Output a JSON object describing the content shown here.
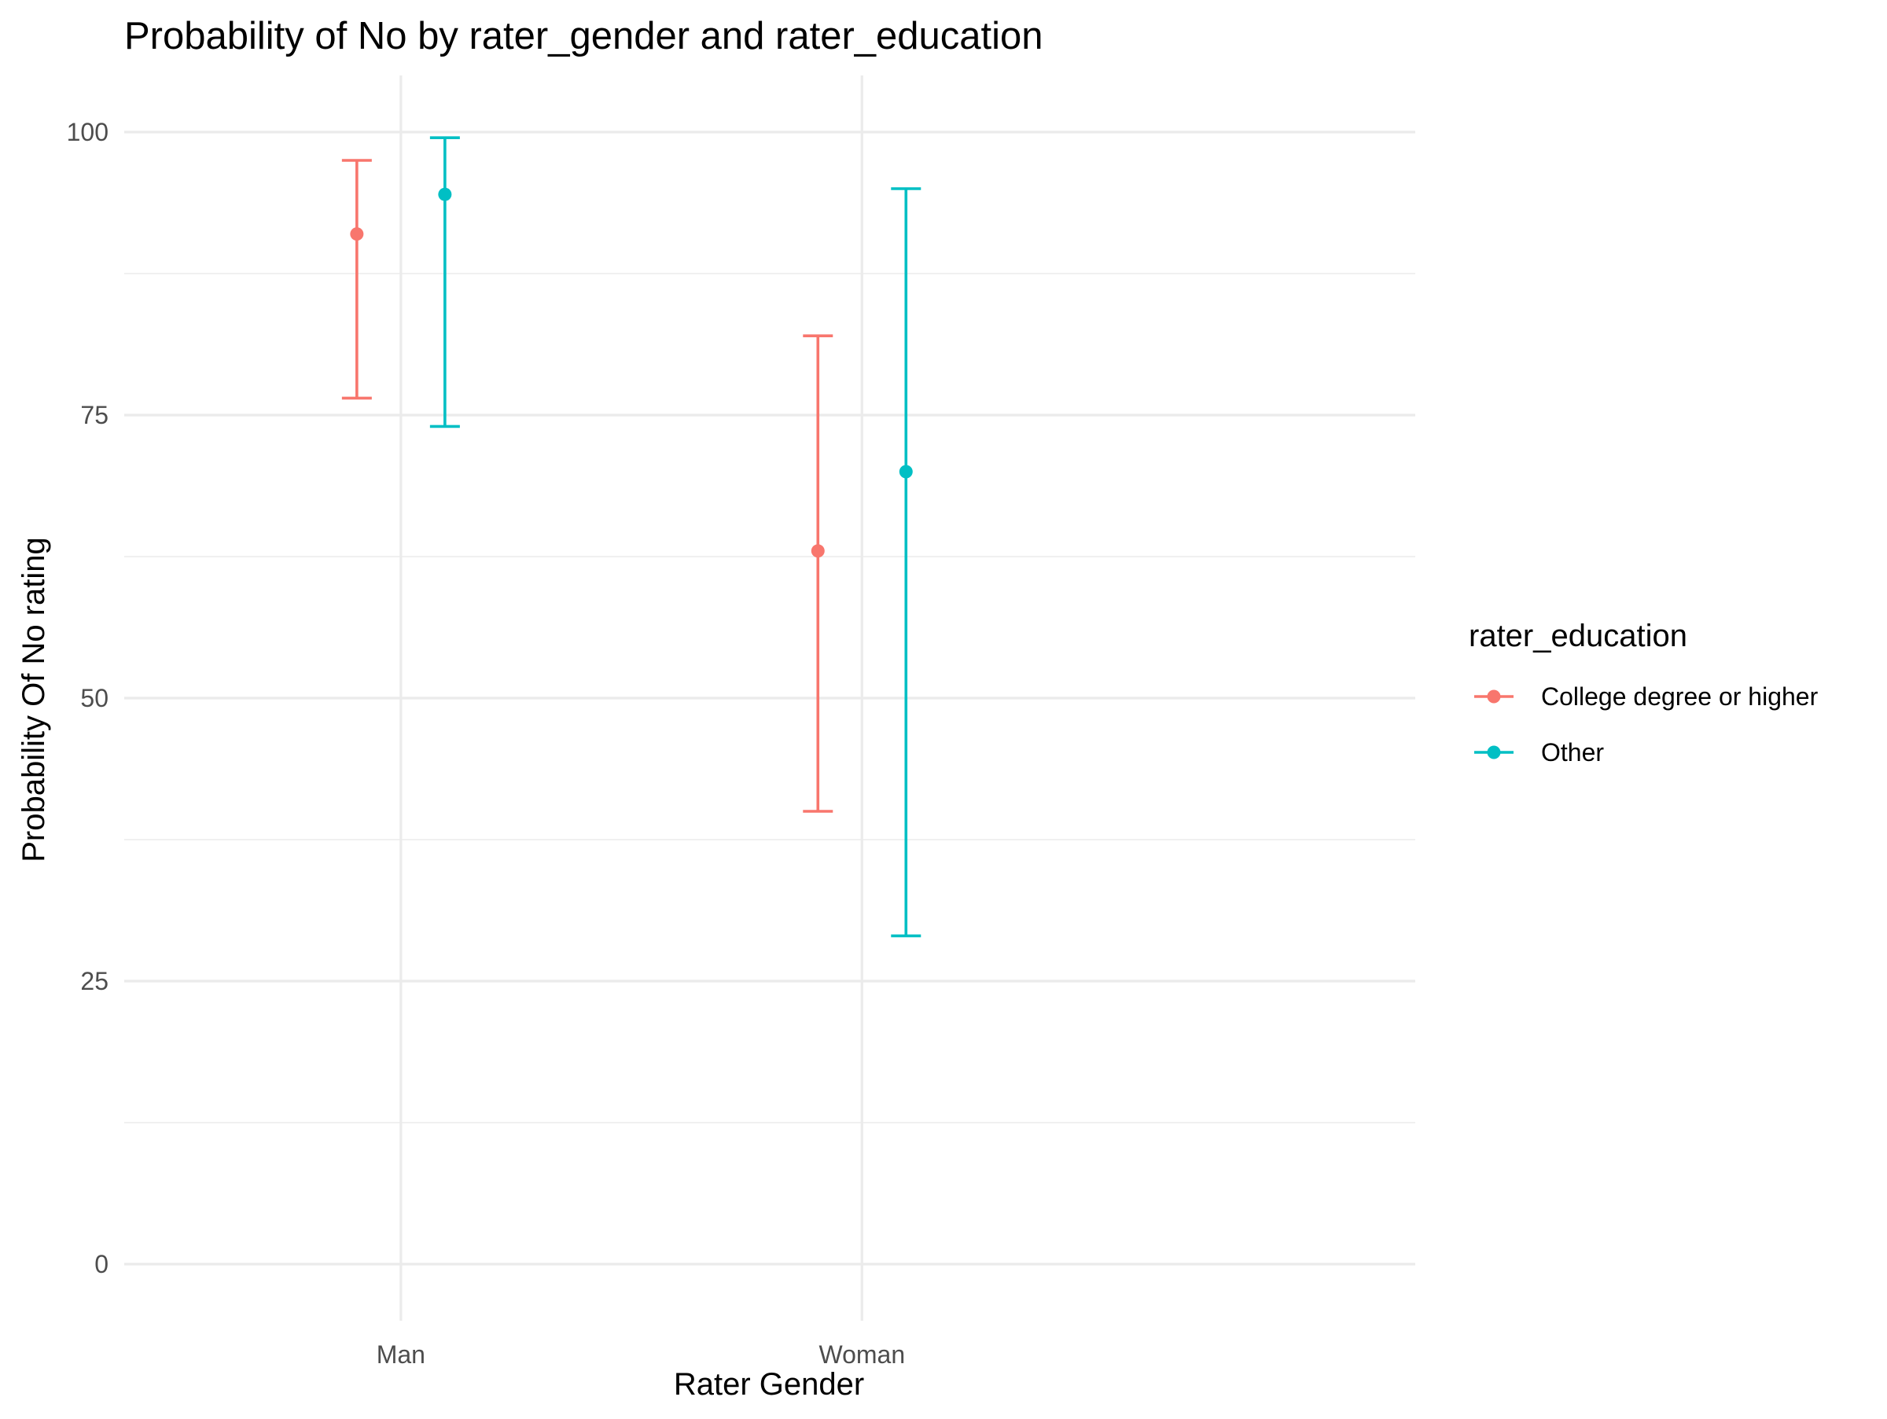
{
  "chart_data": {
    "type": "errorbar",
    "title": "Probability of No by rater_gender and  rater_education",
    "xlabel": "Rater Gender",
    "ylabel": "Probability Of No rating",
    "categories": [
      "Man",
      "Woman"
    ],
    "ylim": [
      -5,
      105
    ],
    "y_ticks": [
      0,
      25,
      50,
      75,
      100
    ],
    "y_tick_labels": [
      "0",
      "25",
      "50",
      "75",
      "100"
    ],
    "y_minor_ticks": [
      12.5,
      37.5,
      62.5,
      87.5
    ],
    "grid": true,
    "legend": {
      "title": "rater_education",
      "position": "right"
    },
    "series": [
      {
        "name": "College degree or higher",
        "color": "#F8766D",
        "points": [
          {
            "category": "Man",
            "value": 91.0,
            "lower": 76.5,
            "upper": 97.5
          },
          {
            "category": "Woman",
            "value": 63.0,
            "lower": 40.0,
            "upper": 82.0
          }
        ]
      },
      {
        "name": "Other",
        "color": "#00BFC4",
        "points": [
          {
            "category": "Man",
            "value": 94.5,
            "lower": 74.0,
            "upper": 99.5
          },
          {
            "category": "Woman",
            "value": 70.0,
            "lower": 29.0,
            "upper": 95.0
          }
        ]
      }
    ]
  }
}
